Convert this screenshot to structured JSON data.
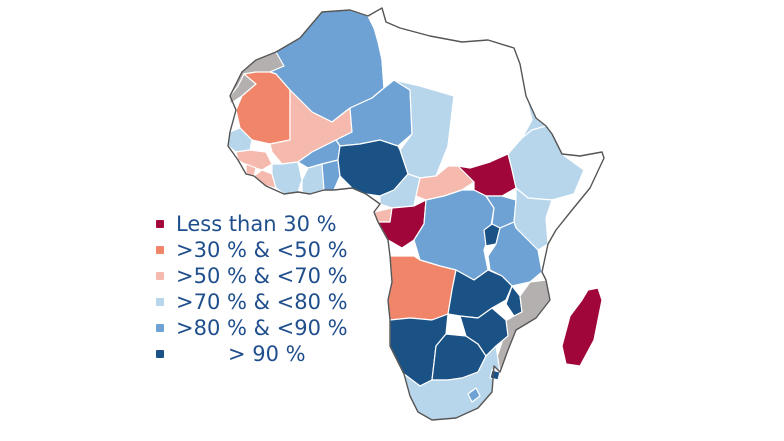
{
  "colors": {
    "ocean": "#ffffff",
    "border": "#ffffff",
    "outline": "#555555",
    "no_data": "#ffffff",
    "grey": "#b5b0b0",
    "legend_text": "#1f4e8c"
  },
  "legend": {
    "items": [
      {
        "label": "Less than 30 %",
        "color": "#a0063a"
      },
      {
        "label": ">30 % & <50 %",
        "color": "#f0856a"
      },
      {
        "label": ">50 % & <70 %",
        "color": "#f5b9ad"
      },
      {
        "label": ">70 % & <80 %",
        "color": "#b7d6ec"
      },
      {
        "label": ">80 % & <90 %",
        "color": "#6ea2d4"
      },
      {
        "label": "> 90 %",
        "color": "#1a5286"
      }
    ]
  },
  "regions": [
    {
      "name": "morocco",
      "category": "grey"
    },
    {
      "name": "western-sahara",
      "category": "grey"
    },
    {
      "name": "algeria",
      "category": 4
    },
    {
      "name": "tunisia",
      "category": "none"
    },
    {
      "name": "libya",
      "category": "none"
    },
    {
      "name": "egypt",
      "category": "none"
    },
    {
      "name": "mauritania",
      "category": 1
    },
    {
      "name": "mali",
      "category": 2
    },
    {
      "name": "niger",
      "category": 4
    },
    {
      "name": "chad",
      "category": 3
    },
    {
      "name": "sudan",
      "category": "none"
    },
    {
      "name": "eritrea",
      "category": 3
    },
    {
      "name": "ethiopia",
      "category": 3
    },
    {
      "name": "somalia",
      "category": "none"
    },
    {
      "name": "senegal",
      "category": 3
    },
    {
      "name": "guinea",
      "category": 2
    },
    {
      "name": "sierra-leone",
      "category": 2
    },
    {
      "name": "liberia",
      "category": 2
    },
    {
      "name": "cote-divoire",
      "category": 3
    },
    {
      "name": "burkina-faso",
      "category": 4
    },
    {
      "name": "ghana",
      "category": 3
    },
    {
      "name": "togo-benin",
      "category": 4
    },
    {
      "name": "nigeria",
      "category": 5
    },
    {
      "name": "cameroon",
      "category": 3
    },
    {
      "name": "car",
      "category": 2
    },
    {
      "name": "south-sudan",
      "category": 0
    },
    {
      "name": "equatorial-guinea",
      "category": 2
    },
    {
      "name": "gabon-congo",
      "category": 0
    },
    {
      "name": "drc",
      "category": 4
    },
    {
      "name": "uganda",
      "category": 4
    },
    {
      "name": "kenya",
      "category": 3
    },
    {
      "name": "rwanda-burundi",
      "category": 5
    },
    {
      "name": "tanzania",
      "category": 4
    },
    {
      "name": "angola",
      "category": 1
    },
    {
      "name": "zambia",
      "category": 5
    },
    {
      "name": "malawi",
      "category": 5
    },
    {
      "name": "mozambique",
      "category": "grey"
    },
    {
      "name": "namibia",
      "category": 5
    },
    {
      "name": "botswana",
      "category": 5
    },
    {
      "name": "zimbabwe",
      "category": 5
    },
    {
      "name": "south-africa",
      "category": 3
    },
    {
      "name": "lesotho",
      "category": 4
    },
    {
      "name": "eswatini",
      "category": 5
    },
    {
      "name": "madagascar",
      "category": 0
    }
  ]
}
